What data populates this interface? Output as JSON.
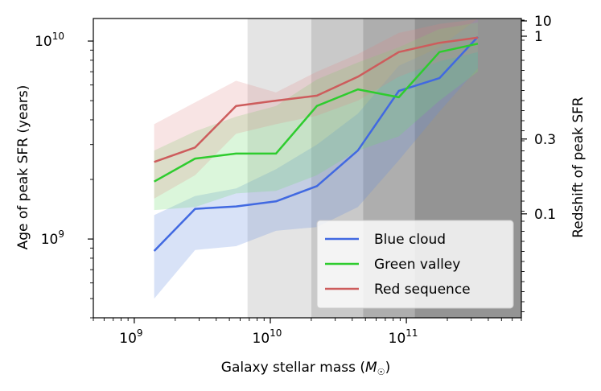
{
  "chart_data": {
    "type": "line",
    "xlabel": "Galaxy stellar mass (M☉)",
    "ylabel": "Age of peak SFR (years)",
    "y2label": "Redshift of peak SFR",
    "xscale": "log",
    "yscale": "log",
    "xlim": [
      500000000,
      700000000000
    ],
    "ylim": [
      400000000,
      13000000000
    ],
    "x_ticks": [
      {
        "value": 1000000000,
        "label": "10",
        "exp": "9"
      },
      {
        "value": 10000000000,
        "label": "10",
        "exp": "10"
      },
      {
        "value": 100000000000,
        "label": "10",
        "exp": "11"
      }
    ],
    "y_ticks": [
      {
        "value": 1000000000,
        "label": "10",
        "exp": "9"
      },
      {
        "value": 10000000000,
        "label": "10",
        "exp": "10"
      }
    ],
    "y2_ticks": [
      {
        "age": 12640000000,
        "label": "10"
      },
      {
        "age": 10580000000,
        "label": "1"
      },
      {
        "age": 3200000000,
        "label": "0.3"
      },
      {
        "age": 1340000000,
        "label": "0.1"
      }
    ],
    "shaded_bands": [
      {
        "x0": 6800000000,
        "x1": 20000000000,
        "color": "#e4e4e4"
      },
      {
        "x0": 20000000000,
        "x1": 48000000000,
        "color": "#c9c9c9"
      },
      {
        "x0": 48000000000,
        "x1": 115000000000,
        "color": "#aeaeae"
      },
      {
        "x0": 115000000000,
        "x1": 700000000000,
        "color": "#949494"
      }
    ],
    "series": [
      {
        "name": "Blue cloud",
        "color": "#4169e1",
        "fill": "rgba(100,140,225,0.25)",
        "x": [
          1400000000,
          2800000000,
          5600000000,
          11000000000,
          22000000000,
          44000000000,
          88000000000,
          175000000000,
          335000000000
        ],
        "y": [
          870000000,
          1420000000,
          1460000000,
          1550000000,
          1850000000,
          2800000000,
          5600000000,
          6500000000,
          10500000000
        ],
        "lo": [
          500000000,
          880000000,
          920000000,
          1100000000,
          1150000000,
          1450000000,
          2500000000,
          4400000000,
          7300000000
        ],
        "hi": [
          1320000000,
          1650000000,
          1800000000,
          2250000000,
          3000000000,
          4300000000,
          7500000000,
          9300000000,
          13000000000
        ]
      },
      {
        "name": "Green valley",
        "color": "#2ecc2e",
        "fill": "rgba(110,220,110,0.25)",
        "x": [
          1400000000,
          2800000000,
          5600000000,
          11000000000,
          22000000000,
          44000000000,
          88000000000,
          175000000000,
          335000000000
        ],
        "y": [
          1950000000,
          2550000000,
          2700000000,
          2700000000,
          4700000000,
          5700000000,
          5200000000,
          8800000000,
          9700000000
        ],
        "lo": [
          1400000000,
          1450000000,
          1700000000,
          1750000000,
          2100000000,
          2800000000,
          3300000000,
          5000000000,
          7000000000
        ],
        "hi": [
          2800000000,
          3500000000,
          4150000000,
          4700000000,
          6400000000,
          7800000000,
          9300000000,
          11500000000,
          12400000000
        ]
      },
      {
        "name": "Red sequence",
        "color": "#cd5c5c",
        "fill": "rgba(225,130,130,0.22)",
        "x": [
          1400000000,
          2800000000,
          5600000000,
          11000000000,
          22000000000,
          44000000000,
          88000000000,
          175000000000,
          335000000000
        ],
        "y": [
          2450000000,
          2900000000,
          4700000000,
          5000000000,
          5300000000,
          6600000000,
          8800000000,
          9800000000,
          10400000000
        ],
        "lo": [
          1600000000,
          2100000000,
          3400000000,
          3800000000,
          4200000000,
          5000000000,
          6600000000,
          7900000000,
          8800000000
        ],
        "hi": [
          3800000000,
          4900000000,
          6300000000,
          5500000000,
          7000000000,
          8600000000,
          11000000000,
          12200000000,
          12900000000
        ]
      }
    ],
    "legend_position": "lower-right"
  }
}
